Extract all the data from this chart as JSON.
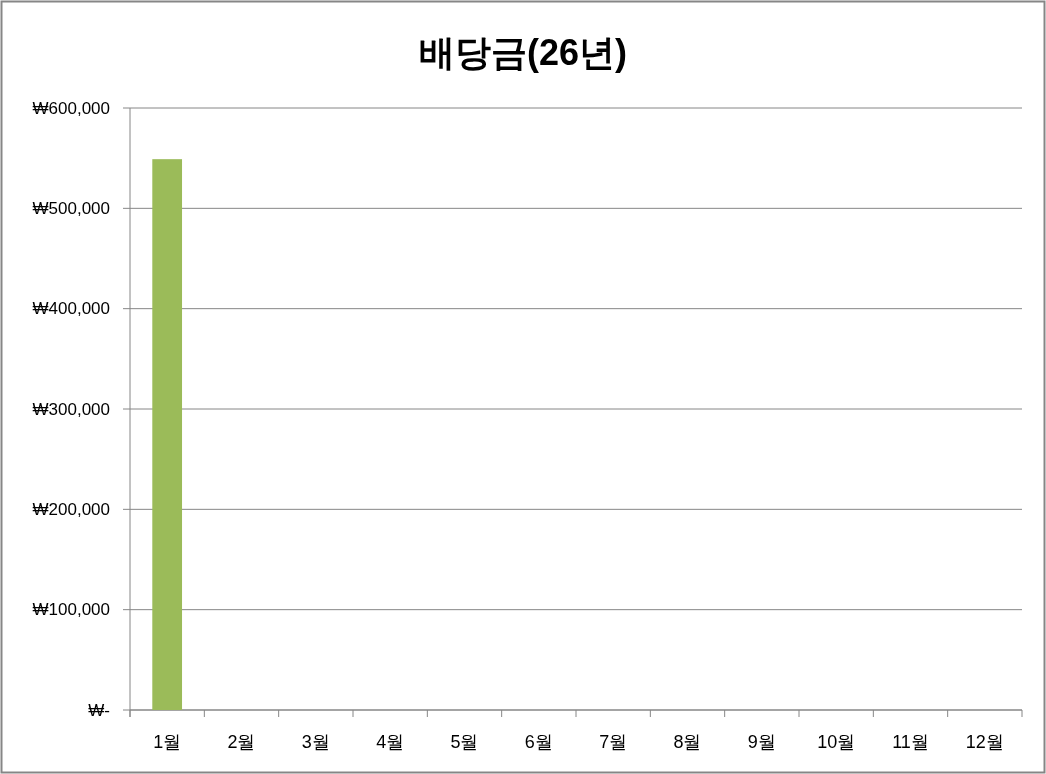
{
  "chart_data": {
    "type": "bar",
    "title": "배당금(26년)",
    "categories": [
      "1월",
      "2월",
      "3월",
      "4월",
      "5월",
      "6월",
      "7월",
      "8월",
      "9월",
      "10월",
      "11월",
      "12월"
    ],
    "values": [
      549000,
      null,
      null,
      null,
      null,
      null,
      null,
      null,
      null,
      null,
      null,
      null
    ],
    "color": "#9bbb59",
    "ylim": [
      0,
      600000
    ],
    "yticks": [
      {
        "value": 0,
        "label": "₩-"
      },
      {
        "value": 100000,
        "label": "₩100,000"
      },
      {
        "value": 200000,
        "label": "₩200,000"
      },
      {
        "value": 300000,
        "label": "₩300,000"
      },
      {
        "value": 400000,
        "label": "₩400,000"
      },
      {
        "value": 500000,
        "label": "₩500,000"
      },
      {
        "value": 600000,
        "label": "₩600,000"
      }
    ],
    "grid": "y"
  }
}
